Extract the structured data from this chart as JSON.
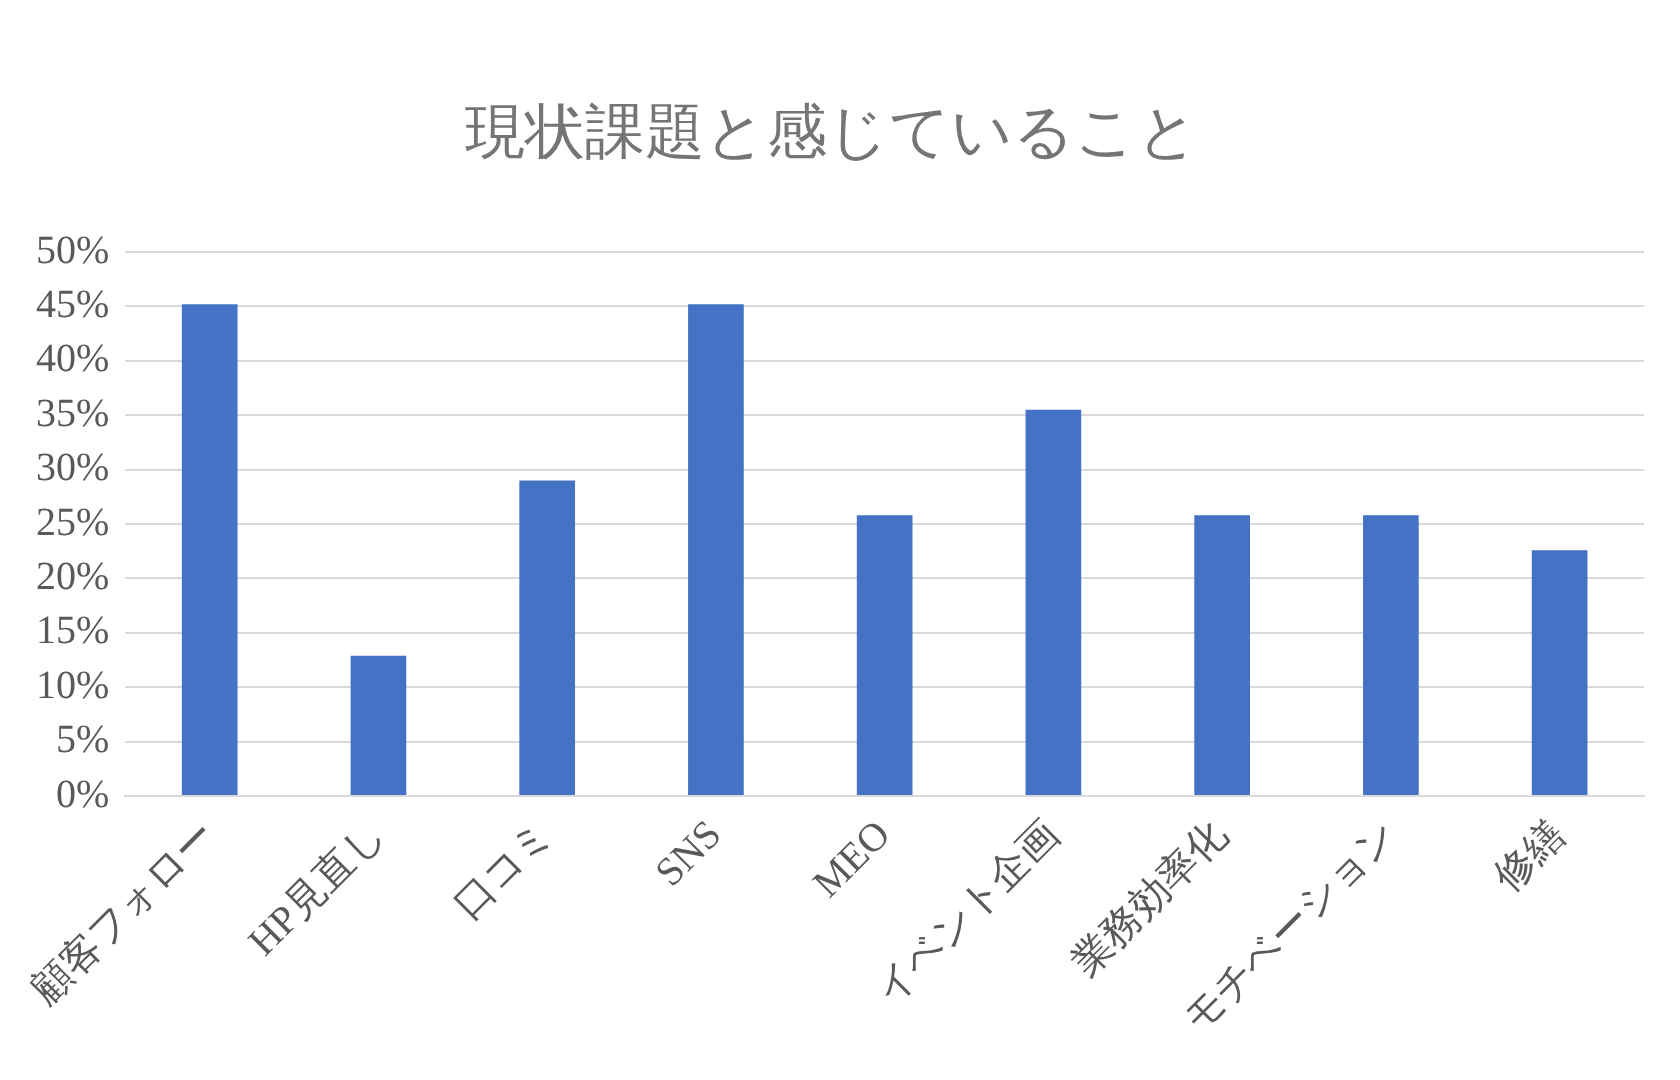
{
  "chart_data": {
    "type": "bar",
    "title": "現状課題と感じていること",
    "categories": [
      "顧客フォロー",
      "HP見直し",
      "口コミ",
      "SNS",
      "MEO",
      "イベント企画",
      "業務効率化",
      "モチベーション",
      "修繕"
    ],
    "values": [
      45.2,
      12.9,
      29.0,
      45.2,
      25.8,
      35.5,
      25.8,
      25.8,
      22.6
    ],
    "color": "#4472c4",
    "ylim": [
      0,
      50
    ],
    "yticks": [
      {
        "value": 0,
        "label": "0%"
      },
      {
        "value": 5,
        "label": "5%"
      },
      {
        "value": 10,
        "label": "10%"
      },
      {
        "value": 15,
        "label": "15%"
      },
      {
        "value": 20,
        "label": "20%"
      },
      {
        "value": 25,
        "label": "25%"
      },
      {
        "value": 30,
        "label": "30%"
      },
      {
        "value": 35,
        "label": "35%"
      },
      {
        "value": 40,
        "label": "40%"
      },
      {
        "value": 45,
        "label": "45%"
      },
      {
        "value": 50,
        "label": "50%"
      }
    ],
    "grid": "y"
  }
}
